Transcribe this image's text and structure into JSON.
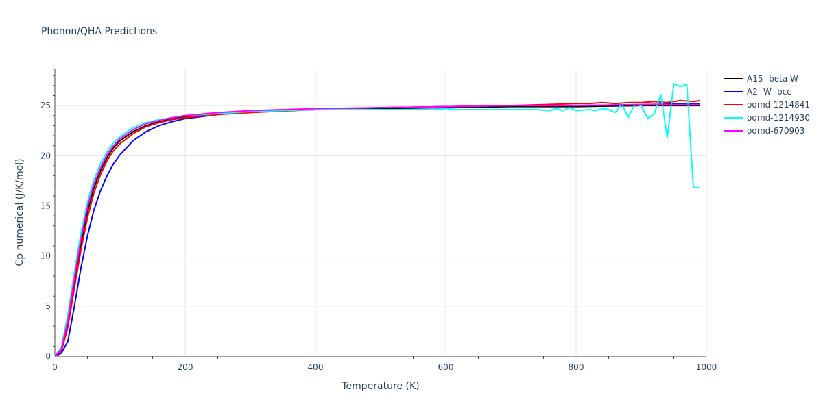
{
  "chart_data": {
    "type": "line",
    "title": "Phonon/QHA Predictions",
    "xlabel": "Temperature (K)",
    "ylabel": "Cp numerical (J/K/mol)",
    "xlim": [
      0,
      1000
    ],
    "ylim": [
      0,
      28.7
    ],
    "x_ticks": [
      0,
      200,
      400,
      600,
      800,
      1000
    ],
    "x_tick_labels": [
      "0",
      "200",
      "400",
      "600",
      "800",
      "1000"
    ],
    "y_ticks": [
      0,
      5,
      10,
      15,
      20,
      25
    ],
    "y_tick_labels": [
      "0",
      "5",
      "10",
      "15",
      "20",
      "25"
    ],
    "grid": true,
    "legend_position": "top-right",
    "series": [
      {
        "name": "A15--beta-W",
        "color": "#000000",
        "x": [
          0,
          10,
          20,
          30,
          40,
          50,
          60,
          70,
          80,
          90,
          100,
          120,
          140,
          160,
          180,
          200,
          250,
          300,
          400,
          500,
          600,
          700,
          800,
          900,
          990
        ],
        "y": [
          0,
          0.6,
          3.3,
          7.4,
          11.2,
          14.4,
          16.8,
          18.5,
          19.8,
          20.8,
          21.5,
          22.4,
          23.0,
          23.4,
          23.7,
          23.9,
          24.2,
          24.4,
          24.6,
          24.7,
          24.8,
          24.9,
          24.9,
          25.0,
          25.0
        ]
      },
      {
        "name": "A2--W--bcc",
        "color": "#0000ff",
        "x": [
          0,
          10,
          20,
          30,
          40,
          50,
          60,
          70,
          80,
          90,
          100,
          120,
          140,
          160,
          180,
          200,
          250,
          300,
          400,
          500,
          600,
          700,
          800,
          900,
          990
        ],
        "y": [
          0,
          0.3,
          1.5,
          5.0,
          8.8,
          12.0,
          14.6,
          16.5,
          18.0,
          19.2,
          20.1,
          21.5,
          22.4,
          23.0,
          23.4,
          23.7,
          24.1,
          24.4,
          24.6,
          24.8,
          24.9,
          25.0,
          25.0,
          25.1,
          25.2
        ]
      },
      {
        "name": "oqmd-1214841",
        "color": "#ff0000",
        "x": [
          0,
          10,
          20,
          30,
          40,
          50,
          60,
          70,
          80,
          90,
          100,
          120,
          140,
          160,
          180,
          200,
          250,
          300,
          400,
          500,
          600,
          700,
          750,
          800,
          820,
          840,
          860,
          880,
          900,
          920,
          940,
          960,
          980,
          990
        ],
        "y": [
          0,
          0.5,
          2.9,
          6.8,
          10.6,
          13.8,
          16.3,
          18.1,
          19.5,
          20.5,
          21.2,
          22.2,
          22.9,
          23.3,
          23.6,
          23.8,
          24.1,
          24.3,
          24.6,
          24.8,
          24.9,
          25.0,
          25.1,
          25.2,
          25.2,
          25.3,
          25.2,
          25.3,
          25.3,
          25.4,
          25.3,
          25.5,
          25.4,
          25.5
        ]
      },
      {
        "name": "oqmd-1214930",
        "color": "#00ffff",
        "x": [
          0,
          10,
          20,
          30,
          40,
          50,
          60,
          70,
          80,
          90,
          100,
          120,
          140,
          160,
          180,
          200,
          250,
          300,
          400,
          500,
          560,
          580,
          600,
          620,
          640,
          660,
          680,
          700,
          720,
          740,
          760,
          770,
          780,
          790,
          800,
          820,
          830,
          840,
          850,
          860,
          870,
          880,
          890,
          900,
          910,
          920,
          930,
          940,
          950,
          960,
          970,
          980,
          990
        ],
        "y": [
          0,
          0.9,
          4.2,
          8.4,
          12.3,
          15.4,
          17.6,
          19.2,
          20.4,
          21.3,
          21.9,
          22.8,
          23.3,
          23.6,
          23.8,
          24.0,
          24.2,
          24.4,
          24.6,
          24.6,
          24.6,
          24.6,
          24.7,
          24.6,
          24.6,
          24.6,
          24.6,
          24.6,
          24.6,
          24.6,
          24.5,
          24.7,
          24.5,
          24.8,
          24.5,
          24.6,
          24.5,
          24.7,
          24.6,
          24.3,
          25.2,
          23.8,
          25.1,
          25.0,
          23.7,
          24.2,
          26.1,
          21.8,
          27.2,
          26.9,
          27.1,
          16.8,
          16.8
        ]
      },
      {
        "name": "oqmd-670903",
        "color": "#ff00ff",
        "x": [
          0,
          10,
          20,
          30,
          40,
          50,
          60,
          70,
          80,
          90,
          100,
          120,
          140,
          160,
          180,
          200,
          250,
          300,
          400,
          500,
          600,
          700,
          800,
          900,
          990
        ],
        "y": [
          0,
          0.7,
          3.6,
          7.8,
          11.7,
          14.9,
          17.2,
          18.8,
          20.1,
          21.0,
          21.7,
          22.6,
          23.2,
          23.5,
          23.8,
          24.0,
          24.3,
          24.5,
          24.7,
          24.8,
          24.9,
          25.0,
          25.0,
          25.1,
          25.1
        ]
      }
    ]
  }
}
